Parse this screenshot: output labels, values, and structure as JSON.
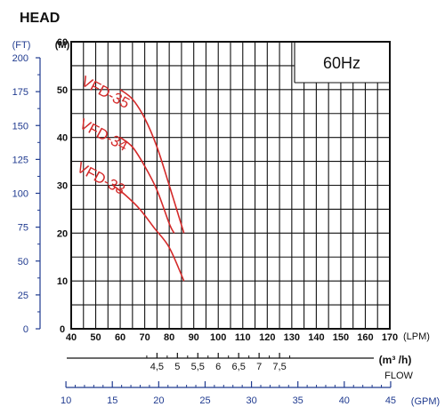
{
  "chart_data": {
    "type": "line",
    "title": "HEAD",
    "frequency_label": "60Hz",
    "y_left": {
      "unit": "(FT)",
      "ticks": [
        "200",
        "175",
        "150",
        "125",
        "100",
        "75",
        "50",
        "25",
        "0"
      ],
      "color": "#1f3a8f"
    },
    "y_right": {
      "unit": "(M)",
      "ticks": [
        "60",
        "50",
        "40",
        "30",
        "20",
        "10",
        "0"
      ],
      "range": [
        0,
        60
      ]
    },
    "x_lpm": {
      "unit": "(LPM)",
      "ticks": [
        "40",
        "50",
        "60",
        "70",
        "80",
        "90",
        "100",
        "110",
        "120",
        "130",
        "140",
        "150",
        "160",
        "170"
      ],
      "range": [
        40,
        170
      ]
    },
    "x_m3h": {
      "unit": "(m³ /h)",
      "ticks": [
        "4,5",
        "5",
        "5,5",
        "6",
        "6,5",
        "7",
        "7,5"
      ]
    },
    "x_gpm": {
      "unit": "(GPM)",
      "ticks": [
        "10",
        "15",
        "20",
        "25",
        "30",
        "35",
        "40",
        "45"
      ],
      "color": "#1f3a8f"
    },
    "flow_label": "FLOW",
    "series": [
      {
        "name": "VFD-35",
        "x": [
          60,
          65,
          70,
          75,
          80,
          86
        ],
        "y": [
          50,
          48,
          44,
          38,
          30,
          20
        ]
      },
      {
        "name": "VFD-34",
        "x": [
          60,
          65,
          70,
          75,
          80,
          82
        ],
        "y": [
          40,
          38,
          34,
          29,
          22,
          20
        ]
      },
      {
        "name": "VFD-33",
        "x": [
          57,
          62,
          68,
          74,
          80,
          86
        ],
        "y": [
          30,
          28,
          25,
          21,
          17,
          10
        ]
      }
    ],
    "curve_color": "#d42a2a"
  }
}
